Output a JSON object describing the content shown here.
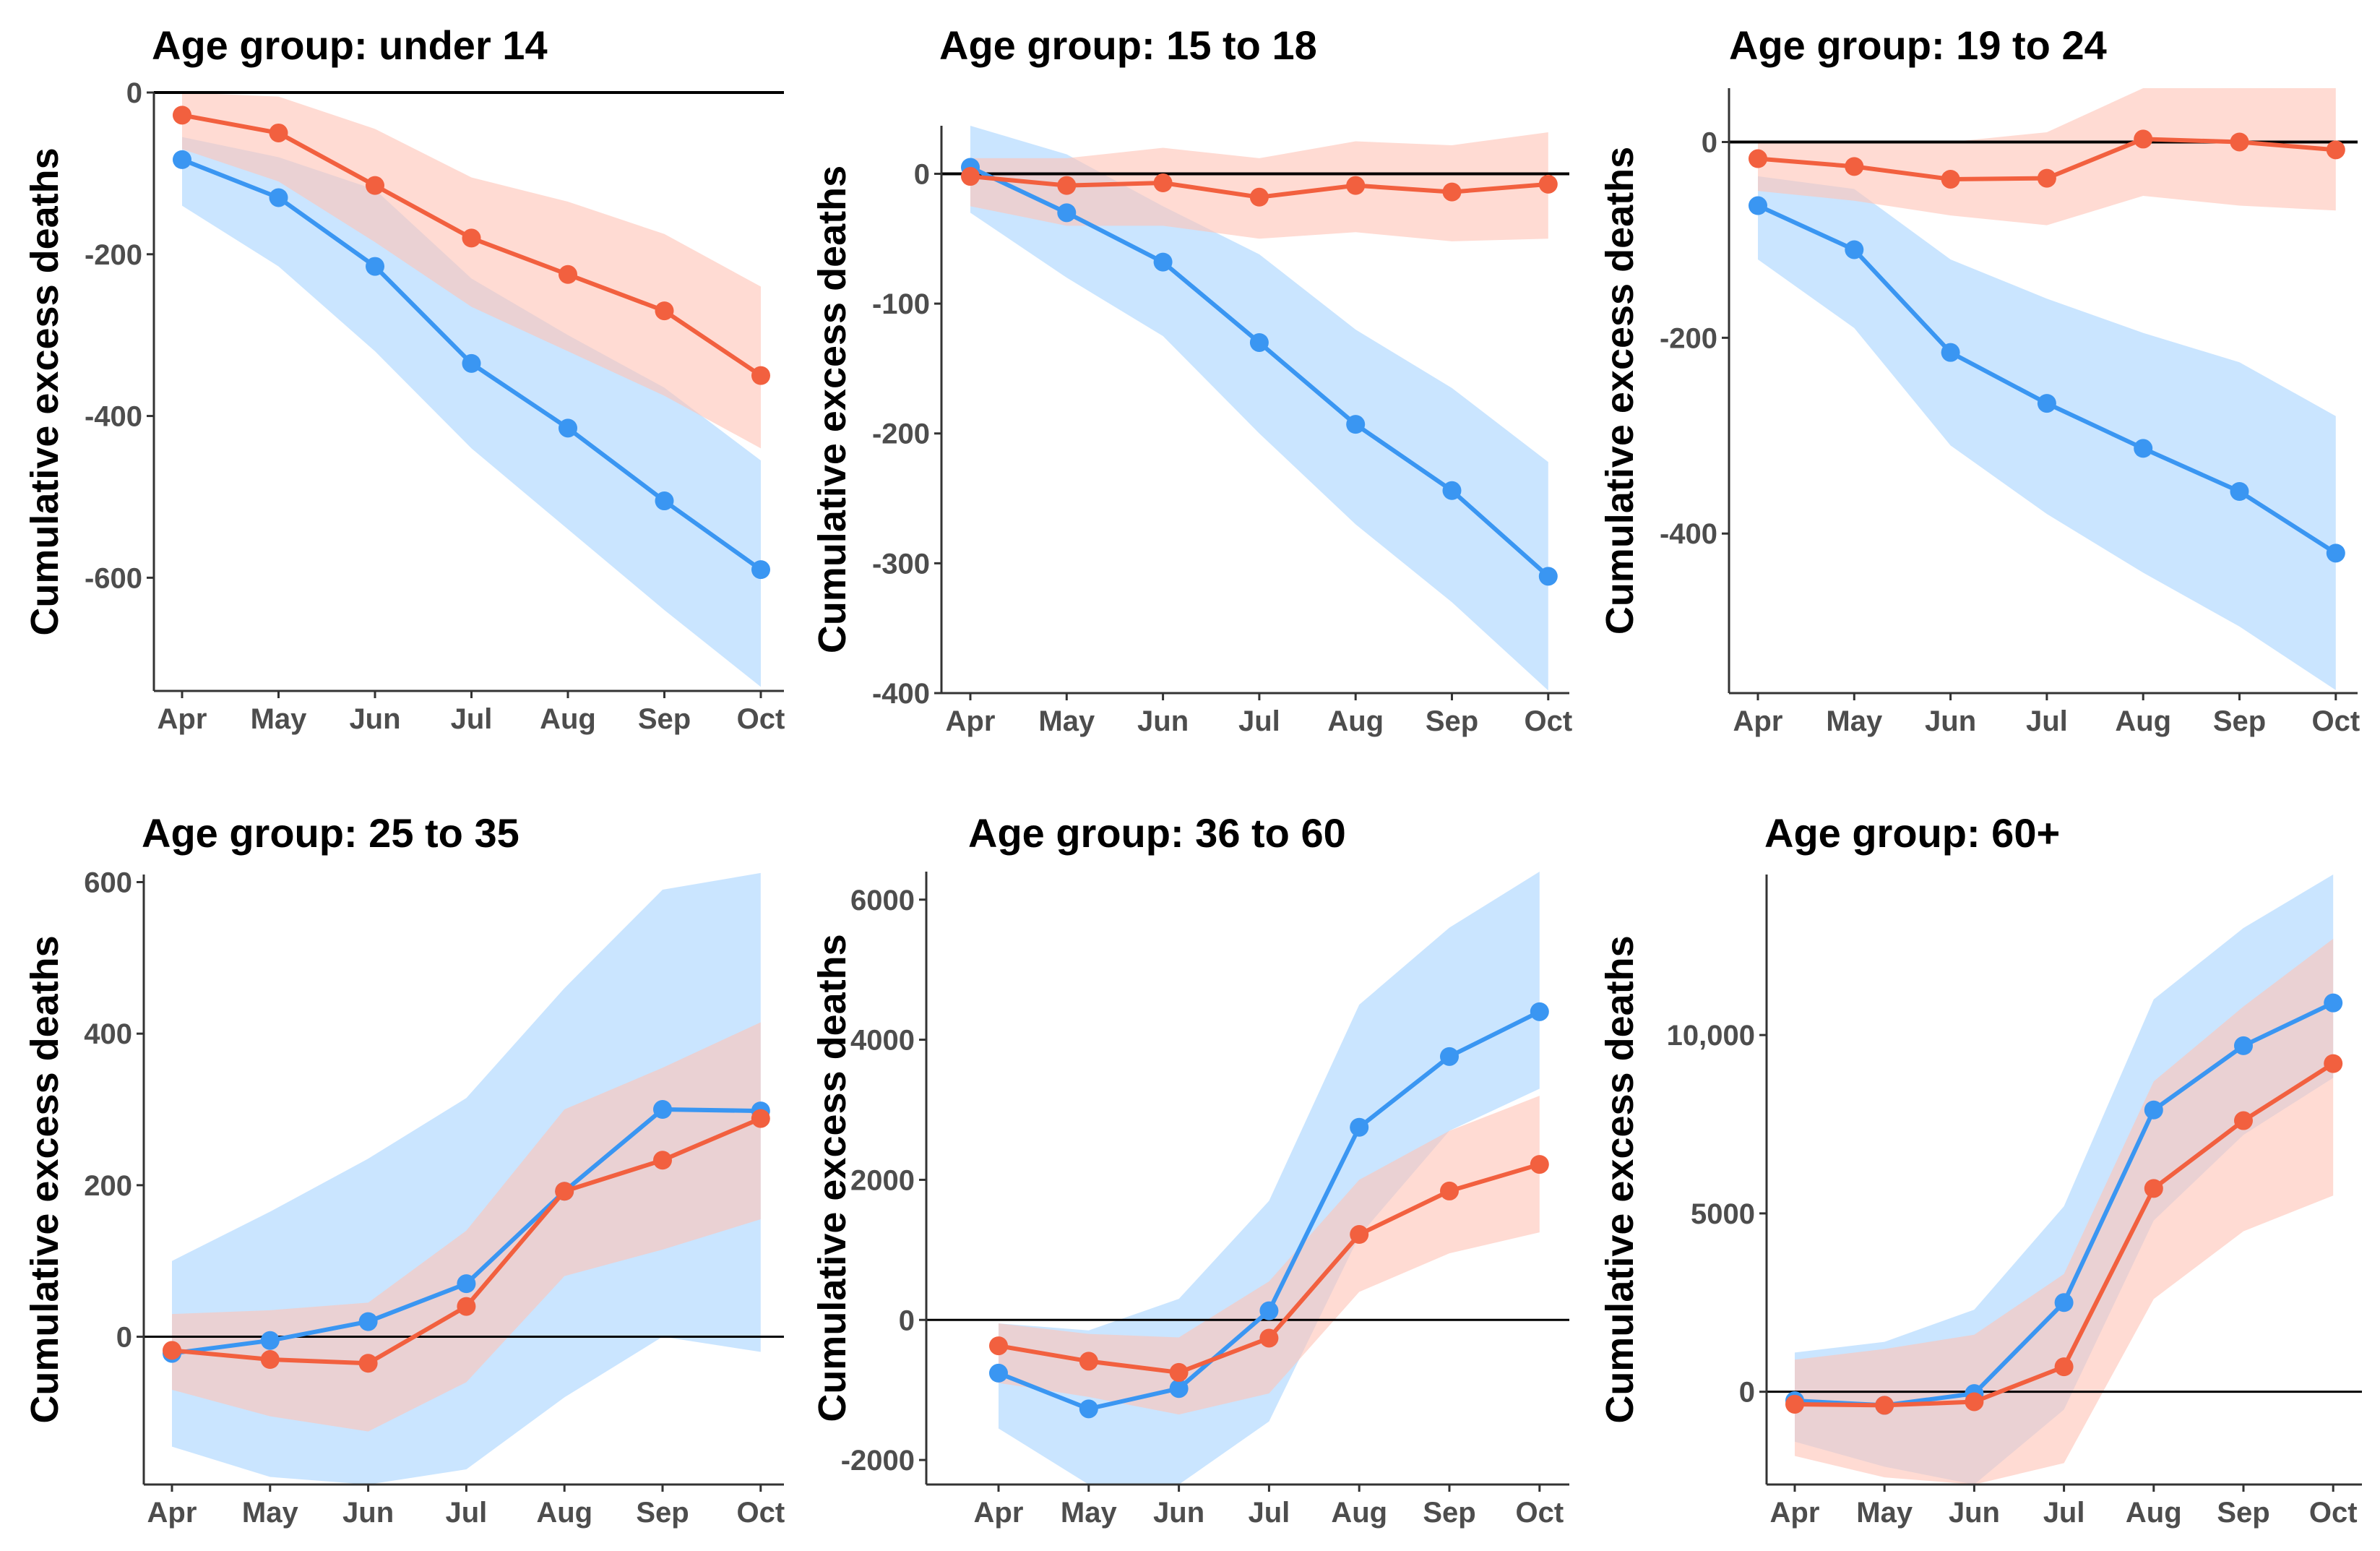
{
  "colors": {
    "blue_line": "#3a96f2",
    "red_line": "#f2603f",
    "blue_band": "#b8dcff",
    "red_band": "#ffc3b6",
    "zero_line": "#000000",
    "axis": "#333333",
    "tick_text": "#4d4d4d"
  },
  "chart_data": [
    {
      "type": "line",
      "title": "Age group: under 14",
      "ylabel": "Cumulative excess deaths",
      "categories": [
        "Apr",
        "May",
        "Jun",
        "Jul",
        "Aug",
        "Sep",
        "Oct"
      ],
      "ylim": [
        -740,
        0
      ],
      "yticks": [
        0,
        -200,
        -400,
        -600
      ],
      "ytick_labels": [
        "0",
        "-200",
        "-400",
        "-600"
      ],
      "zero_line": true,
      "series": [
        {
          "name": "blue",
          "values": [
            -83,
            -130,
            -215,
            -335,
            -415,
            -505,
            -590
          ],
          "lower": [
            -140,
            -215,
            -320,
            -440,
            -540,
            -640,
            -735
          ],
          "upper": [
            -55,
            -80,
            -120,
            -230,
            -300,
            -365,
            -455
          ]
        },
        {
          "name": "red",
          "values": [
            -28,
            -50,
            -115,
            -180,
            -225,
            -270,
            -350
          ],
          "lower": [
            -70,
            -110,
            -185,
            -265,
            -320,
            -375,
            -440
          ],
          "upper": [
            0,
            -5,
            -45,
            -105,
            -135,
            -175,
            -240
          ]
        }
      ]
    },
    {
      "type": "line",
      "title": "Age group: 15 to 18",
      "ylabel": "Cumulative excess deaths",
      "categories": [
        "Apr",
        "May",
        "Jun",
        "Jul",
        "Aug",
        "Sep",
        "Oct"
      ],
      "ylim": [
        -400,
        37
      ],
      "yticks": [
        0,
        -100,
        -200,
        -300,
        -400
      ],
      "ytick_labels": [
        "0",
        "-100",
        "-200",
        "-300",
        "-400"
      ],
      "zero_line": true,
      "series": [
        {
          "name": "blue",
          "values": [
            5,
            -30,
            -68,
            -130,
            -193,
            -244,
            -310
          ],
          "lower": [
            -30,
            -80,
            -125,
            -200,
            -270,
            -330,
            -398
          ],
          "upper": [
            37,
            15,
            -25,
            -62,
            -120,
            -165,
            -222
          ]
        },
        {
          "name": "red",
          "values": [
            -2,
            -9,
            -7,
            -18,
            -9,
            -14,
            -8
          ],
          "lower": [
            -25,
            -40,
            -40,
            -50,
            -45,
            -52,
            -50
          ],
          "upper": [
            12,
            12,
            20,
            12,
            25,
            22,
            32
          ]
        }
      ]
    },
    {
      "type": "line",
      "title": "Age group: 19 to 24",
      "ylabel": "Cumulative excess deaths",
      "categories": [
        "Apr",
        "May",
        "Jun",
        "Jul",
        "Aug",
        "Sep",
        "Oct"
      ],
      "ylim": [
        -563,
        55
      ],
      "yticks": [
        0,
        -200,
        -400
      ],
      "ytick_labels": [
        "0",
        "-200",
        "-400"
      ],
      "zero_line": true,
      "series": [
        {
          "name": "blue",
          "values": [
            -65,
            -110,
            -215,
            -267,
            -313,
            -357,
            -420
          ],
          "lower": [
            -120,
            -190,
            -310,
            -380,
            -440,
            -495,
            -560
          ],
          "upper": [
            -35,
            -48,
            -120,
            -160,
            -195,
            -225,
            -280
          ]
        },
        {
          "name": "red",
          "values": [
            -17,
            -25,
            -38,
            -37,
            3,
            0,
            -8
          ],
          "lower": [
            -50,
            -60,
            -75,
            -85,
            -55,
            -65,
            -70
          ],
          "upper": [
            0,
            0,
            0,
            10,
            55,
            55,
            55
          ]
        }
      ]
    },
    {
      "type": "line",
      "title": "Age group: 25 to 35",
      "ylabel": "Cumulative excess deaths",
      "categories": [
        "Apr",
        "May",
        "Jun",
        "Jul",
        "Aug",
        "Sep",
        "Oct"
      ],
      "ylim": [
        -195,
        610
      ],
      "yticks": [
        0,
        200,
        400,
        600
      ],
      "ytick_labels": [
        "0",
        "200",
        "400",
        "600"
      ],
      "zero_line": true,
      "series": [
        {
          "name": "blue",
          "values": [
            -22,
            -5,
            20,
            70,
            192,
            300,
            298
          ],
          "lower": [
            -145,
            -185,
            -195,
            -175,
            -80,
            0,
            -20
          ],
          "upper": [
            100,
            165,
            235,
            315,
            460,
            590,
            612
          ]
        },
        {
          "name": "red",
          "values": [
            -18,
            -30,
            -35,
            40,
            192,
            233,
            288
          ],
          "lower": [
            -70,
            -105,
            -125,
            -60,
            80,
            115,
            155
          ],
          "upper": [
            30,
            35,
            45,
            140,
            300,
            355,
            415
          ]
        }
      ]
    },
    {
      "type": "line",
      "title": "Age group: 36 to 60",
      "ylabel": "Cumulative excess deaths",
      "categories": [
        "Apr",
        "May",
        "Jun",
        "Jul",
        "Aug",
        "Sep",
        "Oct"
      ],
      "ylim": [
        -2350,
        6400
      ],
      "yticks": [
        6000,
        4000,
        2000,
        0,
        -2000
      ],
      "ytick_labels": [
        "6000",
        "4000",
        "2000",
        "0",
        "-2000"
      ],
      "zero_line": true,
      "series": [
        {
          "name": "blue",
          "values": [
            -760,
            -1270,
            -980,
            130,
            2750,
            3760,
            4400
          ],
          "lower": [
            -1550,
            -2350,
            -2350,
            -1450,
            1200,
            2700,
            3300
          ],
          "upper": [
            -50,
            -150,
            300,
            1700,
            4500,
            5600,
            6400
          ]
        },
        {
          "name": "red",
          "values": [
            -370,
            -590,
            -750,
            -260,
            1220,
            1840,
            2220
          ],
          "lower": [
            -900,
            -1100,
            -1350,
            -1050,
            400,
            950,
            1250
          ],
          "upper": [
            -50,
            -200,
            -250,
            550,
            2000,
            2700,
            3200
          ]
        }
      ]
    },
    {
      "type": "line",
      "title": "Age group: 60+",
      "ylabel": "Cumulative excess deaths",
      "categories": [
        "Apr",
        "May",
        "Jun",
        "Jul",
        "Aug",
        "Sep",
        "Oct"
      ],
      "ylim": [
        -2600,
        14500
      ],
      "yticks": [
        10000,
        5000,
        0
      ],
      "ytick_labels": [
        "10,000",
        "5000",
        "0"
      ],
      "zero_line": true,
      "series": [
        {
          "name": "blue",
          "values": [
            -250,
            -380,
            -50,
            2500,
            7900,
            9700,
            10900
          ],
          "lower": [
            -1400,
            -2100,
            -2600,
            -500,
            4800,
            7200,
            8800
          ],
          "upper": [
            1100,
            1400,
            2300,
            5200,
            11000,
            13000,
            14500
          ]
        },
        {
          "name": "red",
          "values": [
            -350,
            -380,
            -280,
            700,
            5700,
            7600,
            9200
          ],
          "lower": [
            -1800,
            -2400,
            -2600,
            -2000,
            2600,
            4500,
            5500
          ],
          "upper": [
            900,
            1200,
            1600,
            3300,
            8700,
            10800,
            12700
          ]
        }
      ]
    }
  ]
}
